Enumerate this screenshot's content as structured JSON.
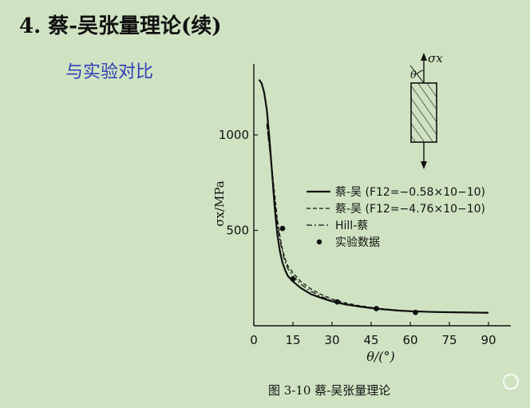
{
  "slide": {
    "title": "4. 蔡-吴张量理论(续)",
    "subtitle": "与实验对比"
  },
  "colors": {
    "background": "#cfe3c2",
    "subtitle": "#2f3db8",
    "ink": "#111111"
  },
  "chart_data": {
    "type": "line",
    "xlabel": "θ/(°)",
    "ylabel": "σx/MPa",
    "xlim": [
      0,
      93
    ],
    "ylim": [
      0,
      1350
    ],
    "xticks": [
      0,
      15,
      30,
      45,
      60,
      75,
      90
    ],
    "yticks": [
      500,
      1000
    ],
    "grid": false,
    "legend_position": "right",
    "caption": "图 3-10   蔡-吴张量理论",
    "inset_labels": {
      "stress": "σx",
      "angle": "θ"
    },
    "series": [
      {
        "name": "蔡-吴 (F12=−0.58×10−10)",
        "style": "solid",
        "x": [
          2,
          3,
          4,
          5,
          6,
          7,
          8,
          9,
          10,
          11,
          12,
          13,
          15,
          18,
          22,
          26,
          30,
          35,
          40,
          45,
          50,
          55,
          60,
          70,
          80,
          90
        ],
        "y": [
          1290,
          1270,
          1220,
          1130,
          980,
          800,
          620,
          480,
          390,
          330,
          292,
          262,
          232,
          198,
          165,
          145,
          128,
          112,
          102,
          93,
          86,
          80,
          76,
          72,
          70,
          68
        ]
      },
      {
        "name": "蔡-吴 (F12=−4.76×10−10)",
        "style": "dashed",
        "x": [
          5,
          7,
          9,
          10,
          11,
          12,
          13,
          15,
          18,
          22,
          26,
          30,
          35,
          40,
          45,
          50,
          55,
          60,
          70,
          80,
          90
        ],
        "y": [
          1050,
          820,
          560,
          470,
          400,
          350,
          315,
          278,
          232,
          192,
          163,
          140,
          120,
          106,
          96,
          88,
          82,
          78,
          73,
          70,
          68
        ]
      },
      {
        "name": "Hill-蔡",
        "style": "dashdot",
        "x": [
          5,
          7,
          9,
          10,
          11,
          12,
          13,
          15,
          18,
          22,
          26,
          30,
          35,
          40,
          45,
          50,
          55,
          60,
          70,
          80,
          90
        ],
        "y": [
          1060,
          800,
          540,
          450,
          385,
          335,
          300,
          262,
          218,
          180,
          152,
          132,
          114,
          100,
          91,
          84,
          79,
          75,
          71,
          69,
          67
        ]
      },
      {
        "name": "实验数据",
        "style": "points",
        "x": [
          11,
          15,
          32,
          47,
          62
        ],
        "y": [
          510,
          245,
          125,
          90,
          70
        ]
      }
    ]
  }
}
